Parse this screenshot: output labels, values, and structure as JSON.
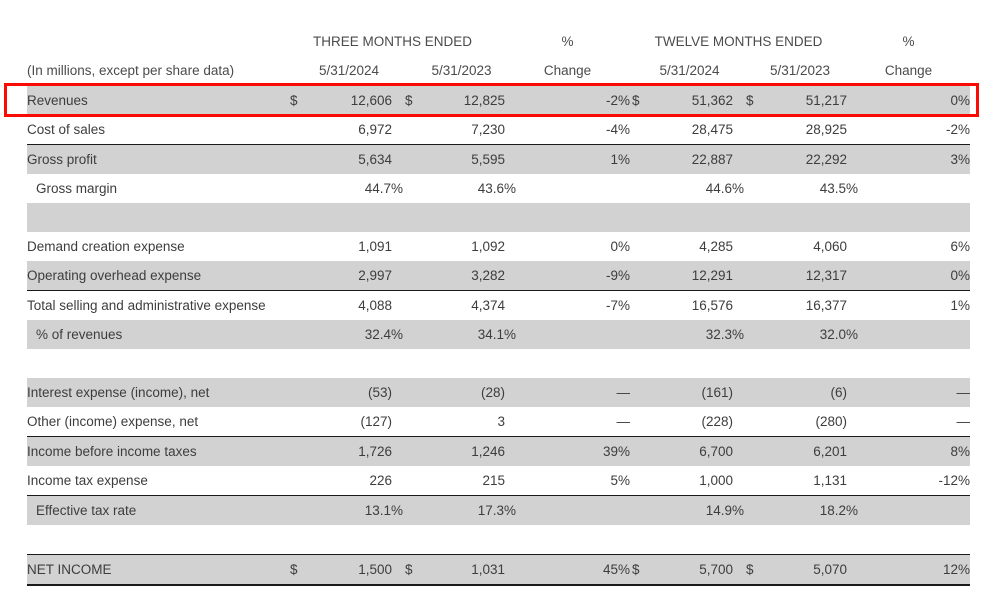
{
  "header": {
    "three_months": "THREE MONTHS ENDED",
    "pct1": "%",
    "twelve_months": "TWELVE MONTHS ENDED",
    "pct2": "%",
    "note": "(In millions, except per share data)",
    "q_col1": "5/31/2024",
    "q_col2": "5/31/2023",
    "change1": "Change",
    "y_col1": "5/31/2024",
    "y_col2": "5/31/2023",
    "change2": "Change"
  },
  "colors": {
    "stripe": "#d2d2d2",
    "highlight": "#f90b06",
    "rule": "#1a1a1a"
  },
  "rows": [
    {
      "label": "Revenues",
      "d1": "$",
      "q1": "12,606",
      "d2": "$",
      "q2": "12,825",
      "chg1": "-2%",
      "d3": "$",
      "y1": "51,362",
      "d4": "$",
      "y2": "51,217",
      "chg2": "0%"
    },
    {
      "label": "Cost of sales",
      "q1": "6,972",
      "q2": "7,230",
      "chg1": "-4%",
      "y1": "28,475",
      "y2": "28,925",
      "chg2": "-2%"
    },
    {
      "label": "Gross profit",
      "q1": "5,634",
      "q2": "5,595",
      "chg1": "1%",
      "y1": "22,887",
      "y2": "22,292",
      "chg2": "3%"
    },
    {
      "label": "Gross margin",
      "q1": "44.7%",
      "q2": "43.6%",
      "y1": "44.6%",
      "y2": "43.5%"
    },
    {
      "label": "Demand creation expense",
      "q1": "1,091",
      "q2": "1,092",
      "chg1": "0%",
      "y1": "4,285",
      "y2": "4,060",
      "chg2": "6%"
    },
    {
      "label": "Operating overhead expense",
      "q1": "2,997",
      "q2": "3,282",
      "chg1": "-9%",
      "y1": "12,291",
      "y2": "12,317",
      "chg2": "0%"
    },
    {
      "label": "Total selling and administrative expense",
      "q1": "4,088",
      "q2": "4,374",
      "chg1": "-7%",
      "y1": "16,576",
      "y2": "16,377",
      "chg2": "1%"
    },
    {
      "label": "% of revenues",
      "q1": "32.4%",
      "q2": "34.1%",
      "y1": "32.3%",
      "y2": "32.0%"
    },
    {
      "label": "Interest expense (income), net",
      "q1": "(53)",
      "q2": "(28)",
      "chg1": "—",
      "y1": "(161)",
      "y2": "(6)",
      "chg2": "—"
    },
    {
      "label": "Other (income) expense, net",
      "q1": "(127)",
      "q2": "3",
      "chg1": "—",
      "y1": "(228)",
      "y2": "(280)",
      "chg2": "—"
    },
    {
      "label": "Income before income taxes",
      "q1": "1,726",
      "q2": "1,246",
      "chg1": "39%",
      "y1": "6,700",
      "y2": "6,201",
      "chg2": "8%"
    },
    {
      "label": "Income tax expense",
      "q1": "226",
      "q2": "215",
      "chg1": "5%",
      "y1": "1,000",
      "y2": "1,131",
      "chg2": "-12%"
    },
    {
      "label": "Effective tax rate",
      "q1": "13.1%",
      "q2": "17.3%",
      "y1": "14.9%",
      "y2": "18.2%"
    },
    {
      "label": "NET INCOME",
      "d1": "$",
      "q1": "1,500",
      "d2": "$",
      "q2": "1,031",
      "chg1": "45%",
      "d3": "$",
      "y1": "5,700",
      "d4": "$",
      "y2": "5,070",
      "chg2": "12%"
    }
  ]
}
